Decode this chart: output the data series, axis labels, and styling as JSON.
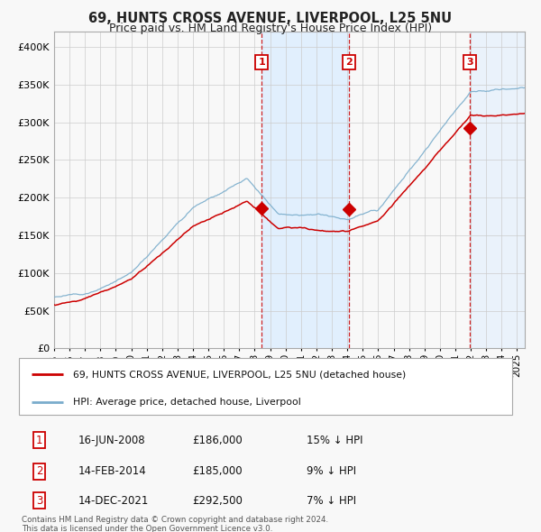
{
  "title": "69, HUNTS CROSS AVENUE, LIVERPOOL, L25 5NU",
  "subtitle": "Price paid vs. HM Land Registry's House Price Index (HPI)",
  "ylabel_ticks": [
    "£0",
    "£50K",
    "£100K",
    "£150K",
    "£200K",
    "£250K",
    "£300K",
    "£350K",
    "£400K"
  ],
  "ytick_vals": [
    0,
    50000,
    100000,
    150000,
    200000,
    250000,
    300000,
    350000,
    400000
  ],
  "ylim": [
    0,
    420000
  ],
  "xlim_start": 1995.0,
  "xlim_end": 2025.5,
  "sale_dates": [
    2008.458,
    2014.12,
    2021.95
  ],
  "sale_prices": [
    186000,
    185000,
    292500
  ],
  "sale_labels": [
    "1",
    "2",
    "3"
  ],
  "sale_info": [
    [
      "1",
      "16-JUN-2008",
      "£186,000",
      "15% ↓ HPI"
    ],
    [
      "2",
      "14-FEB-2014",
      "£185,000",
      "9% ↓ HPI"
    ],
    [
      "3",
      "14-DEC-2021",
      "£292,500",
      "7% ↓ HPI"
    ]
  ],
  "legend_line1": "69, HUNTS CROSS AVENUE, LIVERPOOL, L25 5NU (detached house)",
  "legend_line2": "HPI: Average price, detached house, Liverpool",
  "footer": [
    "Contains HM Land Registry data © Crown copyright and database right 2024.",
    "This data is licensed under the Open Government Licence v3.0."
  ],
  "color_red": "#cc0000",
  "color_blue": "#7aadcc",
  "color_bg_shaded": "#ddeeff",
  "bg_color": "#f8f8f8",
  "grid_color": "#cccccc",
  "title_fontsize": 10.5,
  "subtitle_fontsize": 9
}
